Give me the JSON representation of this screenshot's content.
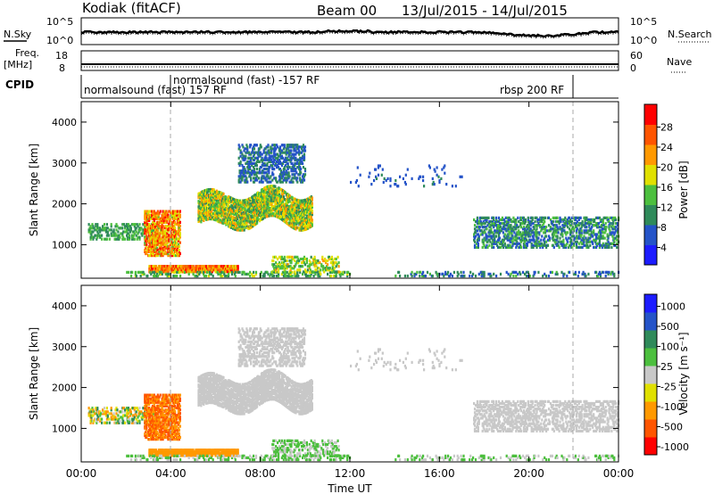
{
  "header": {
    "station": "Kodiak (fitACF)",
    "beam": "Beam 00",
    "date_range": "13/Jul/2015 - 14/Jul/2015"
  },
  "summary_panels": {
    "nsky_label": "N.Sky",
    "nsearch_label": "N.Search",
    "freq_label": "Freq.",
    "freq_unit": "[MHz]",
    "nave_label": "Nave",
    "cpid_label": "CPID",
    "left_ticks_noise": [
      "10^5",
      "10^0"
    ],
    "right_ticks_noise": [
      "10^5",
      "10^0"
    ],
    "left_ticks_freq": [
      "18",
      "8"
    ],
    "right_ticks_nave": [
      "60",
      "0"
    ],
    "cpid_segments": [
      {
        "label": "normalsound (fast) 157 RF",
        "start_h": 0.0
      },
      {
        "label": "normalsound (fast) -157 RF",
        "start_h": 4.0
      },
      {
        "label": "rbsp 200 RF",
        "start_h": 22.0
      }
    ]
  },
  "chart_data": [
    {
      "type": "heatmap",
      "name": "power",
      "ylabel": "Slant Range [km]",
      "xlabel": "Time UT",
      "xlim_hours": [
        0,
        24
      ],
      "xticks": [
        "00:00",
        "04:00",
        "08:00",
        "12:00",
        "16:00",
        "20:00",
        "00:00"
      ],
      "ylim": [
        180,
        4500
      ],
      "yticks": [
        1000,
        2000,
        3000,
        4000
      ],
      "colorbar_label": "Power [dB]",
      "colorbar_ticks": [
        "4",
        "8",
        "12",
        "16",
        "20",
        "24",
        "28"
      ],
      "colors": [
        "#1c1cff",
        "#2453c8",
        "#2f8a5a",
        "#4cbf3e",
        "#e0e000",
        "#ff9900",
        "#ff5500",
        "#ff0000"
      ],
      "clim": [
        0,
        30
      ]
    },
    {
      "type": "heatmap",
      "name": "velocity",
      "ylabel": "Slant Range [km]",
      "xlabel": "Time UT",
      "xlim_hours": [
        0,
        24
      ],
      "xticks": [
        "00:00",
        "04:00",
        "08:00",
        "12:00",
        "16:00",
        "20:00",
        "00:00"
      ],
      "ylim": [
        180,
        4500
      ],
      "yticks": [
        1000,
        2000,
        3000,
        4000
      ],
      "colorbar_label": "Velocity [m s⁻¹]",
      "colorbar_ticks": [
        "1000",
        "500",
        "100",
        "25",
        "-25",
        "-100",
        "-500",
        "-1000"
      ],
      "colors": [
        "#1c1cff",
        "#2453c8",
        "#2f8a5a",
        "#4cbf3e",
        "#c8c8c8",
        "#e0e000",
        "#ff9900",
        "#ff5500",
        "#ff0000"
      ],
      "clim": [
        -1000,
        1000
      ]
    }
  ]
}
